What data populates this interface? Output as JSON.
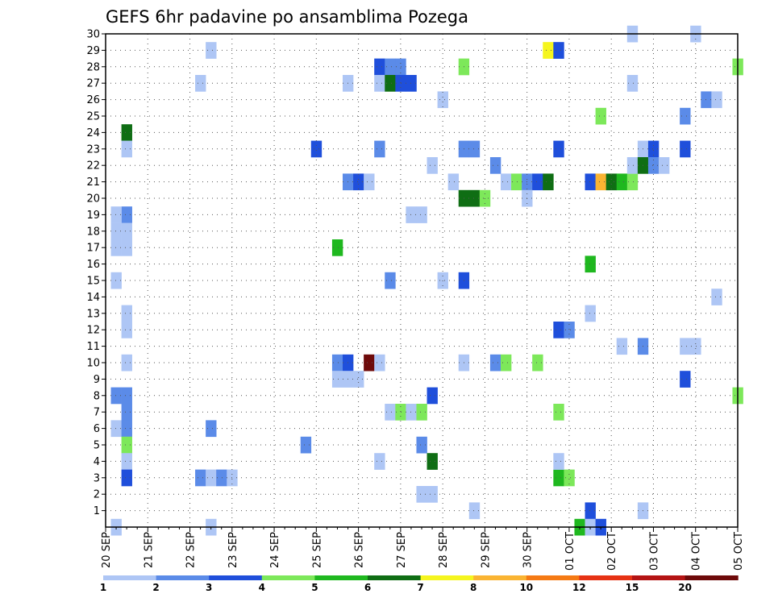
{
  "chart_data": {
    "type": "heatmap",
    "title": "GEFS 6hr padavine po ansamblima Pozega",
    "x_tick_labels": [
      "20 SEP",
      "21 SEP",
      "22 SEP",
      "23 SEP",
      "24 SEP",
      "25 SEP",
      "26 SEP",
      "27 SEP",
      "28 SEP",
      "29 SEP",
      "30 SEP",
      "01 OCT",
      "02 OCT",
      "03 OCT",
      "04 OCT",
      "05 OCT"
    ],
    "y_tick_labels": [
      "1",
      "2",
      "3",
      "4",
      "5",
      "6",
      "7",
      "8",
      "9",
      "10",
      "11",
      "12",
      "13",
      "14",
      "15",
      "16",
      "17",
      "18",
      "19",
      "20",
      "21",
      "22",
      "23",
      "24",
      "25",
      "26",
      "27",
      "28",
      "29",
      "30"
    ],
    "x_unit": "6-hour step from 20 SEP 00Z",
    "y_unit": "ensemble member",
    "grid": true,
    "colorbar": {
      "labels": [
        "1",
        "2",
        "3",
        "4",
        "5",
        "6",
        "7",
        "8",
        "10",
        "12",
        "15",
        "20"
      ],
      "colors": [
        "#aec6f5",
        "#5b8be8",
        "#1f4fdb",
        "#7de85a",
        "#1fb81f",
        "#0f6e14",
        "#f5f51e",
        "#fab432",
        "#f57a14",
        "#e63214",
        "#b41414",
        "#6e0a0a"
      ]
    },
    "cells": [
      {
        "x": 1,
        "y": 0,
        "c": 0
      },
      {
        "x": 2,
        "y": 19,
        "c": 1
      },
      {
        "x": 1,
        "y": 19,
        "c": 0
      },
      {
        "x": 1,
        "y": 18,
        "c": 0
      },
      {
        "x": 2,
        "y": 18,
        "c": 0
      },
      {
        "x": 1,
        "y": 17,
        "c": 0
      },
      {
        "x": 2,
        "y": 17,
        "c": 0
      },
      {
        "x": 2,
        "y": 24,
        "c": 5
      },
      {
        "x": 2,
        "y": 23,
        "c": 0
      },
      {
        "x": 1,
        "y": 15,
        "c": 0
      },
      {
        "x": 2,
        "y": 13,
        "c": 0
      },
      {
        "x": 2,
        "y": 12,
        "c": 0
      },
      {
        "x": 2,
        "y": 10,
        "c": 0
      },
      {
        "x": 1,
        "y": 8,
        "c": 1
      },
      {
        "x": 2,
        "y": 8,
        "c": 1
      },
      {
        "x": 2,
        "y": 7,
        "c": 1
      },
      {
        "x": 1,
        "y": 6,
        "c": 0
      },
      {
        "x": 2,
        "y": 6,
        "c": 1
      },
      {
        "x": 2,
        "y": 5,
        "c": 3
      },
      {
        "x": 2,
        "y": 4,
        "c": 0
      },
      {
        "x": 2,
        "y": 3,
        "c": 2
      },
      {
        "x": 10,
        "y": 29,
        "c": 0
      },
      {
        "x": 9,
        "y": 27,
        "c": 0
      },
      {
        "x": 10,
        "y": 6,
        "c": 1
      },
      {
        "x": 9,
        "y": 3,
        "c": 1
      },
      {
        "x": 10,
        "y": 3,
        "c": 0
      },
      {
        "x": 11,
        "y": 3,
        "c": 1
      },
      {
        "x": 12,
        "y": 3,
        "c": 0
      },
      {
        "x": 10,
        "y": 0,
        "c": 0
      },
      {
        "x": 20,
        "y": 23,
        "c": 2
      },
      {
        "x": 19,
        "y": 5,
        "c": 1
      },
      {
        "x": 23,
        "y": 27,
        "c": 0
      },
      {
        "x": 22,
        "y": 17,
        "c": 4
      },
      {
        "x": 22,
        "y": 10,
        "c": 1
      },
      {
        "x": 23,
        "y": 10,
        "c": 2
      },
      {
        "x": 22,
        "y": 9,
        "c": 0
      },
      {
        "x": 23,
        "y": 9,
        "c": 0
      },
      {
        "x": 24,
        "y": 9,
        "c": 0
      },
      {
        "x": 23,
        "y": 21,
        "c": 1
      },
      {
        "x": 24,
        "y": 21,
        "c": 2
      },
      {
        "x": 25,
        "y": 21,
        "c": 0
      },
      {
        "x": 26,
        "y": 28,
        "c": 2
      },
      {
        "x": 27,
        "y": 28,
        "c": 1
      },
      {
        "x": 28,
        "y": 28,
        "c": 1
      },
      {
        "x": 26,
        "y": 27,
        "c": 0
      },
      {
        "x": 27,
        "y": 27,
        "c": 5
      },
      {
        "x": 28,
        "y": 27,
        "c": 2
      },
      {
        "x": 29,
        "y": 27,
        "c": 2
      },
      {
        "x": 26,
        "y": 23,
        "c": 1
      },
      {
        "x": 25,
        "y": 10,
        "c": 11
      },
      {
        "x": 26,
        "y": 10,
        "c": 0
      },
      {
        "x": 27,
        "y": 15,
        "c": 1
      },
      {
        "x": 26,
        "y": 4,
        "c": 0
      },
      {
        "x": 27,
        "y": 7,
        "c": 0
      },
      {
        "x": 28,
        "y": 7,
        "c": 3
      },
      {
        "x": 29,
        "y": 7,
        "c": 0
      },
      {
        "x": 30,
        "y": 7,
        "c": 3
      },
      {
        "x": 29,
        "y": 19,
        "c": 0
      },
      {
        "x": 30,
        "y": 19,
        "c": 0
      },
      {
        "x": 30,
        "y": 5,
        "c": 1
      },
      {
        "x": 31,
        "y": 8,
        "c": 2
      },
      {
        "x": 31,
        "y": 4,
        "c": 5
      },
      {
        "x": 30,
        "y": 2,
        "c": 0
      },
      {
        "x": 31,
        "y": 2,
        "c": 0
      },
      {
        "x": 31,
        "y": 22,
        "c": 0
      },
      {
        "x": 32,
        "y": 26,
        "c": 0
      },
      {
        "x": 32,
        "y": 15,
        "c": 0
      },
      {
        "x": 33,
        "y": 21,
        "c": 0
      },
      {
        "x": 34,
        "y": 28,
        "c": 3
      },
      {
        "x": 34,
        "y": 23,
        "c": 1
      },
      {
        "x": 35,
        "y": 23,
        "c": 1
      },
      {
        "x": 34,
        "y": 20,
        "c": 5
      },
      {
        "x": 35,
        "y": 20,
        "c": 5
      },
      {
        "x": 36,
        "y": 20,
        "c": 3
      },
      {
        "x": 34,
        "y": 15,
        "c": 2
      },
      {
        "x": 34,
        "y": 10,
        "c": 0
      },
      {
        "x": 35,
        "y": 1,
        "c": 0
      },
      {
        "x": 37,
        "y": 22,
        "c": 1
      },
      {
        "x": 38,
        "y": 21,
        "c": 0
      },
      {
        "x": 39,
        "y": 21,
        "c": 3
      },
      {
        "x": 40,
        "y": 21,
        "c": 1
      },
      {
        "x": 41,
        "y": 21,
        "c": 2
      },
      {
        "x": 42,
        "y": 21,
        "c": 5
      },
      {
        "x": 40,
        "y": 20,
        "c": 0
      },
      {
        "x": 37,
        "y": 10,
        "c": 1
      },
      {
        "x": 38,
        "y": 10,
        "c": 3
      },
      {
        "x": 41,
        "y": 10,
        "c": 3
      },
      {
        "x": 42,
        "y": 29,
        "c": 6
      },
      {
        "x": 43,
        "y": 29,
        "c": 2
      },
      {
        "x": 43,
        "y": 23,
        "c": 2
      },
      {
        "x": 43,
        "y": 12,
        "c": 2
      },
      {
        "x": 44,
        "y": 12,
        "c": 1
      },
      {
        "x": 43,
        "y": 7,
        "c": 3
      },
      {
        "x": 43,
        "y": 3,
        "c": 4
      },
      {
        "x": 44,
        "y": 3,
        "c": 3
      },
      {
        "x": 43,
        "y": 4,
        "c": 0
      },
      {
        "x": 46,
        "y": 21,
        "c": 2
      },
      {
        "x": 47,
        "y": 21,
        "c": 7
      },
      {
        "x": 48,
        "y": 21,
        "c": 5
      },
      {
        "x": 49,
        "y": 21,
        "c": 4
      },
      {
        "x": 50,
        "y": 21,
        "c": 3
      },
      {
        "x": 47,
        "y": 25,
        "c": 3
      },
      {
        "x": 46,
        "y": 16,
        "c": 4
      },
      {
        "x": 46,
        "y": 13,
        "c": 0
      },
      {
        "x": 46,
        "y": 1,
        "c": 2
      },
      {
        "x": 45,
        "y": 0,
        "c": 4
      },
      {
        "x": 46,
        "y": 0,
        "c": 0
      },
      {
        "x": 47,
        "y": 0,
        "c": 2
      },
      {
        "x": 50,
        "y": 30,
        "c": 0
      },
      {
        "x": 50,
        "y": 27,
        "c": 0
      },
      {
        "x": 51,
        "y": 23,
        "c": 0
      },
      {
        "x": 52,
        "y": 23,
        "c": 2
      },
      {
        "x": 50,
        "y": 22,
        "c": 0
      },
      {
        "x": 51,
        "y": 22,
        "c": 5
      },
      {
        "x": 52,
        "y": 22,
        "c": 1
      },
      {
        "x": 53,
        "y": 22,
        "c": 0
      },
      {
        "x": 49,
        "y": 11,
        "c": 0
      },
      {
        "x": 51,
        "y": 11,
        "c": 1
      },
      {
        "x": 51,
        "y": 1,
        "c": 0
      },
      {
        "x": 55,
        "y": 25,
        "c": 1
      },
      {
        "x": 55,
        "y": 23,
        "c": 2
      },
      {
        "x": 55,
        "y": 11,
        "c": 0
      },
      {
        "x": 56,
        "y": 11,
        "c": 0
      },
      {
        "x": 55,
        "y": 9,
        "c": 2
      },
      {
        "x": 56,
        "y": 30,
        "c": 0
      },
      {
        "x": 57,
        "y": 26,
        "c": 1
      },
      {
        "x": 58,
        "y": 26,
        "c": 0
      },
      {
        "x": 58,
        "y": 14,
        "c": 0
      },
      {
        "x": 60,
        "y": 28,
        "c": 3
      },
      {
        "x": 60,
        "y": 8,
        "c": 3
      }
    ]
  }
}
